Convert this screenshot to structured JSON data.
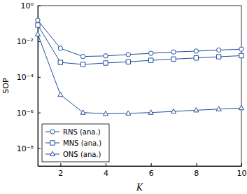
{
  "chart_data": {
    "type": "line",
    "x_label": "K",
    "y_label": "SOP",
    "log": "y",
    "legend": "lower left",
    "grid": false,
    "x": [
      1,
      2,
      3,
      4,
      5,
      6,
      7,
      8,
      9,
      10
    ],
    "xlim": [
      1,
      10
    ],
    "xticks": [
      2,
      4,
      6,
      8,
      10
    ],
    "ylim": [
      1e-09,
      1
    ],
    "yticks": [
      {
        "value": 1,
        "label": "10⁰"
      },
      {
        "value": 0.01,
        "label": "10⁻²"
      },
      {
        "value": 0.0001,
        "label": "10⁻⁴"
      },
      {
        "value": 1e-06,
        "label": "10⁻⁶"
      },
      {
        "value": 1e-08,
        "label": "10⁻⁸"
      }
    ],
    "series": [
      {
        "name": "RNS (ana.)",
        "color": "#1f4e9c",
        "marker": "circle",
        "line_style": "solid",
        "values": [
          0.15,
          0.004,
          0.0014,
          0.0015,
          0.0018,
          0.0021,
          0.0025,
          0.0028,
          0.0032,
          0.0036
        ]
      },
      {
        "name": "MNS (ana.)",
        "color": "#1f4e9c",
        "marker": "square",
        "line_style": "solid",
        "values": [
          0.08,
          0.00065,
          0.0005,
          0.0006,
          0.0007,
          0.00085,
          0.001,
          0.00115,
          0.00135,
          0.00155
        ]
      },
      {
        "name": "ONS (ana.)",
        "color": "#1f4e9c",
        "marker": "triangle",
        "line_style": "solid",
        "values": [
          0.025,
          1e-05,
          1e-06,
          8.5e-07,
          9e-07,
          1e-06,
          1.15e-06,
          1.35e-06,
          1.55e-06,
          1.8e-06
        ]
      }
    ]
  }
}
